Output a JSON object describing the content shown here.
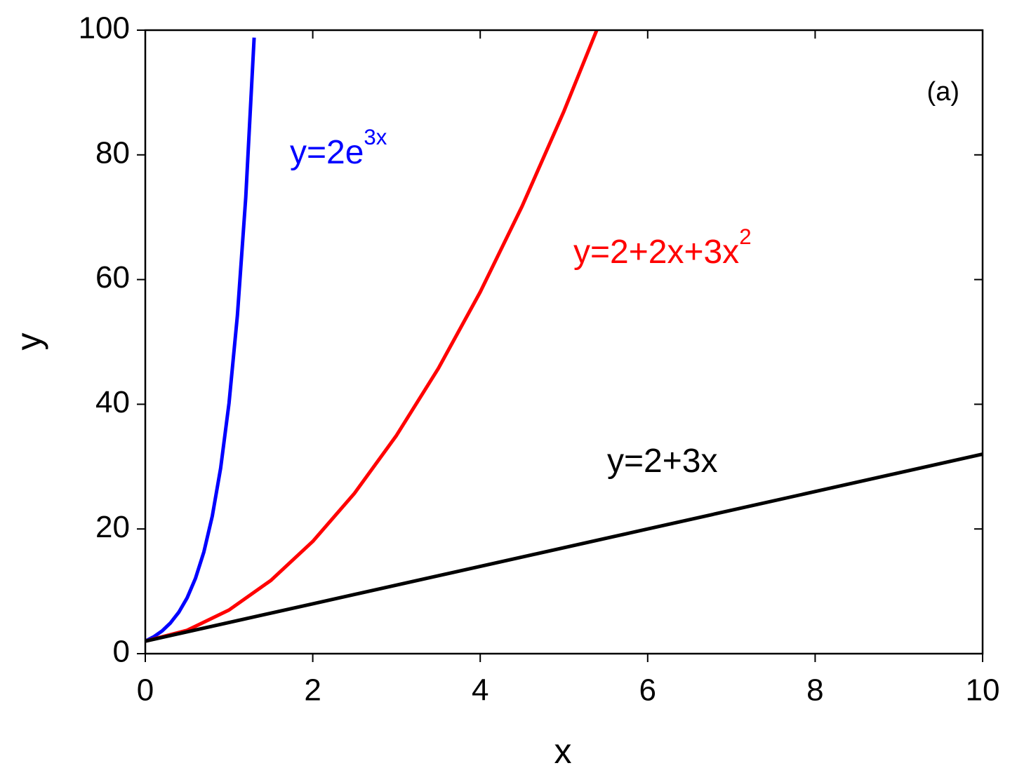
{
  "chart_data": {
    "type": "line",
    "xlabel": "x",
    "ylabel": "y",
    "xlim": [
      0,
      10
    ],
    "xticks": [
      0,
      2,
      4,
      6,
      8,
      10
    ],
    "ylim": [
      0,
      100
    ],
    "yticks": [
      0,
      20,
      40,
      60,
      80,
      100
    ],
    "grid": false,
    "series": [
      {
        "color": "#0000ff",
        "x": [
          0,
          0.1,
          0.2,
          0.3,
          0.4,
          0.5,
          0.6,
          0.7,
          0.8,
          0.9,
          1.0,
          1.1,
          1.2,
          1.3
        ],
        "values": [
          2,
          2.7,
          3.64,
          4.92,
          6.64,
          8.96,
          12.1,
          16.33,
          22.05,
          29.76,
          40.17,
          54.23,
          73.2,
          98.81
        ]
      },
      {
        "color": "#ff0000",
        "x": [
          0,
          0.5,
          1,
          1.5,
          2,
          2.5,
          3,
          3.5,
          4,
          4.5,
          5,
          5.4
        ],
        "values": [
          2,
          3.75,
          7,
          11.75,
          18,
          25.75,
          35,
          45.75,
          58,
          71.75,
          87,
          100.28
        ]
      },
      {
        "color": "#000000",
        "x": [
          0,
          2,
          4,
          6,
          8,
          10
        ],
        "values": [
          2,
          8,
          14,
          20,
          26,
          32
        ]
      }
    ],
    "annotations": [
      {
        "text": "y=2e",
        "sup": "3x",
        "color": "#0000ff"
      },
      {
        "text": "y=2+2x+3x",
        "sup": "2",
        "color": "#ff0000"
      },
      {
        "text": "y=2+3x",
        "color": "#000000"
      },
      {
        "text": "(a)",
        "color": "#000000"
      }
    ]
  }
}
